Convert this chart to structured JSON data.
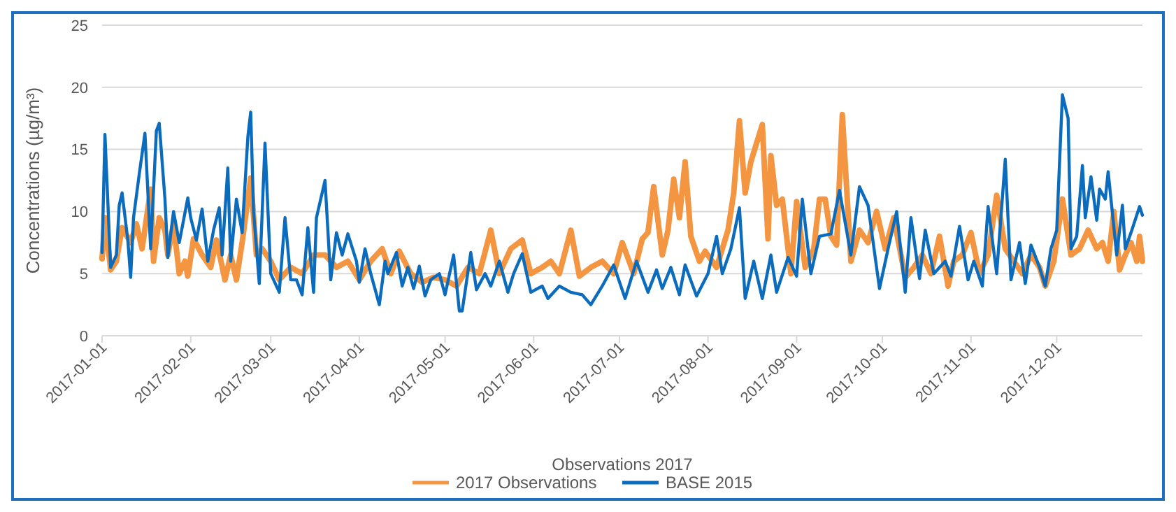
{
  "chart_data": {
    "type": "line",
    "xlabel": "Observations 2017",
    "ylabel": "Concentrations (µg/m³)",
    "xlim": [
      "2017-01-01",
      "2017-12-31"
    ],
    "xticks": [
      "2017-01-01",
      "2017-02-01",
      "2017-03-01",
      "2017-04-01",
      "2017-05-01",
      "2017-06-01",
      "2017-07-01",
      "2017-08-01",
      "2017-09-01",
      "2017-10-01",
      "2017-11-01",
      "2017-12-01"
    ],
    "ylim": [
      0,
      25
    ],
    "yticks": [
      0,
      5,
      10,
      15,
      20,
      25
    ],
    "grid": "y",
    "legend": "bottom",
    "marker": "none",
    "line_style": "solid",
    "series": [
      {
        "name": "2017 Observations",
        "color": "#f39541",
        "x": [
          "2017-01-01",
          "2017-01-02",
          "2017-01-04",
          "2017-01-06",
          "2017-01-08",
          "2017-01-11",
          "2017-01-13",
          "2017-01-15",
          "2017-01-18",
          "2017-01-19",
          "2017-01-21",
          "2017-01-23",
          "2017-01-24",
          "2017-01-26",
          "2017-01-28",
          "2017-01-30",
          "2017-01-31",
          "2017-02-02",
          "2017-02-05",
          "2017-02-08",
          "2017-02-10",
          "2017-02-13",
          "2017-02-15",
          "2017-02-17",
          "2017-02-19",
          "2017-02-22",
          "2017-02-24",
          "2017-02-26",
          "2017-03-01",
          "2017-03-04",
          "2017-03-08",
          "2017-03-12",
          "2017-03-16",
          "2017-03-20",
          "2017-03-24",
          "2017-03-28",
          "2017-04-01",
          "2017-04-05",
          "2017-04-09",
          "2017-04-12",
          "2017-04-15",
          "2017-04-19",
          "2017-04-23",
          "2017-04-27",
          "2017-05-01",
          "2017-05-05",
          "2017-05-09",
          "2017-05-13",
          "2017-05-17",
          "2017-05-20",
          "2017-05-24",
          "2017-05-28",
          "2017-05-31",
          "2017-06-04",
          "2017-06-07",
          "2017-06-10",
          "2017-06-14",
          "2017-06-17",
          "2017-06-21",
          "2017-06-25",
          "2017-06-29",
          "2017-07-02",
          "2017-07-06",
          "2017-07-09",
          "2017-07-11",
          "2017-07-13",
          "2017-07-16",
          "2017-07-18",
          "2017-07-20",
          "2017-07-22",
          "2017-07-24",
          "2017-07-26",
          "2017-07-29",
          "2017-07-31",
          "2017-08-04",
          "2017-08-08",
          "2017-08-10",
          "2017-08-12",
          "2017-08-14",
          "2017-08-16",
          "2017-08-18",
          "2017-08-20",
          "2017-08-22",
          "2017-08-23",
          "2017-08-25",
          "2017-08-27",
          "2017-08-30",
          "2017-09-01",
          "2017-09-04",
          "2017-09-07",
          "2017-09-09",
          "2017-09-11",
          "2017-09-13",
          "2017-09-15",
          "2017-09-17",
          "2017-09-20",
          "2017-09-23",
          "2017-09-26",
          "2017-09-29",
          "2017-10-02",
          "2017-10-05",
          "2017-10-09",
          "2017-10-12",
          "2017-10-15",
          "2017-10-18",
          "2017-10-21",
          "2017-10-24",
          "2017-10-26",
          "2017-10-29",
          "2017-11-01",
          "2017-11-04",
          "2017-11-07",
          "2017-11-10",
          "2017-11-13",
          "2017-11-16",
          "2017-11-19",
          "2017-11-22",
          "2017-11-25",
          "2017-11-27",
          "2017-11-30",
          "2017-12-03",
          "2017-12-06",
          "2017-12-09",
          "2017-12-12",
          "2017-12-15",
          "2017-12-17",
          "2017-12-19",
          "2017-12-21",
          "2017-12-23",
          "2017-12-25",
          "2017-12-27",
          "2017-12-29",
          "2017-12-30",
          "2017-12-31"
        ],
        "values": [
          6.2,
          9.5,
          5.3,
          6.0,
          8.7,
          7.5,
          9.0,
          7.0,
          11.8,
          6.0,
          9.5,
          8.5,
          6.5,
          9.0,
          5.0,
          6.0,
          4.8,
          7.8,
          6.5,
          5.5,
          7.7,
          4.5,
          6.5,
          4.5,
          7.5,
          12.7,
          6.5,
          7.0,
          6.0,
          4.5,
          5.5,
          5.0,
          6.5,
          6.5,
          5.5,
          6.0,
          4.5,
          6.0,
          7.0,
          5.0,
          6.8,
          5.0,
          4.3,
          4.7,
          4.5,
          4.0,
          5.5,
          5.0,
          8.5,
          5.0,
          7.0,
          7.7,
          5.0,
          5.5,
          6.0,
          5.0,
          8.5,
          4.8,
          5.5,
          6.0,
          5.0,
          7.5,
          5.0,
          7.8,
          8.3,
          12.0,
          6.5,
          8.5,
          12.6,
          9.5,
          14.0,
          8.0,
          6.0,
          6.8,
          5.5,
          8.5,
          11.5,
          17.3,
          11.5,
          14.0,
          15.5,
          17.0,
          7.8,
          14.5,
          10.5,
          11.0,
          5.0,
          10.8,
          5.5,
          7.0,
          11.0,
          11.0,
          8.0,
          7.3,
          17.8,
          6.0,
          8.5,
          7.5,
          10.0,
          7.0,
          9.5,
          4.7,
          5.5,
          6.5,
          5.0,
          8.0,
          4.0,
          6.0,
          6.5,
          8.3,
          5.0,
          6.5,
          11.3,
          7.0,
          6.0,
          5.0,
          6.5,
          5.5,
          4.0,
          6.0,
          11.0,
          6.5,
          7.0,
          8.5,
          7.0,
          7.5,
          6.0,
          10.0,
          5.3,
          6.5,
          7.5,
          6.0,
          8.0,
          6.0
        ]
      },
      {
        "name": "BASE 2015",
        "color": "#0b6cbd",
        "x": [
          "2017-01-01",
          "2017-01-02",
          "2017-01-04",
          "2017-01-06",
          "2017-01-07",
          "2017-01-08",
          "2017-01-10",
          "2017-01-11",
          "2017-01-12",
          "2017-01-14",
          "2017-01-16",
          "2017-01-18",
          "2017-01-20",
          "2017-01-21",
          "2017-01-23",
          "2017-01-24",
          "2017-01-26",
          "2017-01-28",
          "2017-01-31",
          "2017-02-01",
          "2017-02-03",
          "2017-02-05",
          "2017-02-07",
          "2017-02-09",
          "2017-02-11",
          "2017-02-12",
          "2017-02-14",
          "2017-02-15",
          "2017-02-17",
          "2017-02-19",
          "2017-02-21",
          "2017-02-22",
          "2017-02-23",
          "2017-02-25",
          "2017-02-27",
          "2017-03-01",
          "2017-03-04",
          "2017-03-06",
          "2017-03-08",
          "2017-03-10",
          "2017-03-12",
          "2017-03-14",
          "2017-03-16",
          "2017-03-17",
          "2017-03-20",
          "2017-03-22",
          "2017-03-24",
          "2017-03-26",
          "2017-03-28",
          "2017-03-31",
          "2017-04-01",
          "2017-04-03",
          "2017-04-05",
          "2017-04-08",
          "2017-04-10",
          "2017-04-11",
          "2017-04-14",
          "2017-04-16",
          "2017-04-18",
          "2017-04-20",
          "2017-04-22",
          "2017-04-24",
          "2017-04-26",
          "2017-04-29",
          "2017-05-01",
          "2017-05-04",
          "2017-05-06",
          "2017-05-07",
          "2017-05-10",
          "2017-05-12",
          "2017-05-15",
          "2017-05-17",
          "2017-05-20",
          "2017-05-23",
          "2017-05-25",
          "2017-05-28",
          "2017-05-31",
          "2017-06-04",
          "2017-06-06",
          "2017-06-10",
          "2017-06-14",
          "2017-06-18",
          "2017-06-21",
          "2017-06-25",
          "2017-06-29",
          "2017-07-03",
          "2017-07-07",
          "2017-07-11",
          "2017-07-14",
          "2017-07-16",
          "2017-07-19",
          "2017-07-22",
          "2017-07-24",
          "2017-07-28",
          "2017-08-01",
          "2017-08-04",
          "2017-08-06",
          "2017-08-09",
          "2017-08-12",
          "2017-08-14",
          "2017-08-17",
          "2017-08-20",
          "2017-08-23",
          "2017-08-25",
          "2017-08-29",
          "2017-09-01",
          "2017-09-03",
          "2017-09-06",
          "2017-09-09",
          "2017-09-13",
          "2017-09-16",
          "2017-09-20",
          "2017-09-23",
          "2017-09-26",
          "2017-09-30",
          "2017-10-03",
          "2017-10-06",
          "2017-10-09",
          "2017-10-11",
          "2017-10-14",
          "2017-10-16",
          "2017-10-19",
          "2017-10-23",
          "2017-10-25",
          "2017-10-28",
          "2017-10-31",
          "2017-11-02",
          "2017-11-05",
          "2017-11-07",
          "2017-11-10",
          "2017-11-13",
          "2017-11-15",
          "2017-11-18",
          "2017-11-20",
          "2017-11-22",
          "2017-11-25",
          "2017-11-27",
          "2017-11-29",
          "2017-12-01",
          "2017-12-03",
          "2017-12-05",
          "2017-12-06",
          "2017-12-08",
          "2017-12-10",
          "2017-12-11",
          "2017-12-13",
          "2017-12-15",
          "2017-12-16",
          "2017-12-18",
          "2017-12-19",
          "2017-12-22",
          "2017-12-24",
          "2017-12-25",
          "2017-12-27",
          "2017-12-30",
          "2017-12-31"
        ],
        "values": [
          6.7,
          16.2,
          5.5,
          6.5,
          10.5,
          11.5,
          7.7,
          4.7,
          9.5,
          13.0,
          16.3,
          7.0,
          16.5,
          17.1,
          11.0,
          6.3,
          10.0,
          7.5,
          11.1,
          9.5,
          7.7,
          10.2,
          6.0,
          8.5,
          10.3,
          6.5,
          13.5,
          6.0,
          11.0,
          8.3,
          16.0,
          18.0,
          10.0,
          4.2,
          15.5,
          5.0,
          3.5,
          9.5,
          4.5,
          4.5,
          3.3,
          8.7,
          3.5,
          9.5,
          12.5,
          4.5,
          8.3,
          6.5,
          8.2,
          6.0,
          4.3,
          7.0,
          5.0,
          2.5,
          6.0,
          5.0,
          6.7,
          4.0,
          5.5,
          3.8,
          5.6,
          3.2,
          4.5,
          5.0,
          3.3,
          6.5,
          2.0,
          2.0,
          6.7,
          3.7,
          5.0,
          4.0,
          6.0,
          3.5,
          5.0,
          6.6,
          3.5,
          4.0,
          3.0,
          4.0,
          3.5,
          3.3,
          2.5,
          4.0,
          5.7,
          3.0,
          6.0,
          3.5,
          5.3,
          3.8,
          5.5,
          3.3,
          5.7,
          3.2,
          5.0,
          8.0,
          5.0,
          7.0,
          10.3,
          3.0,
          6.0,
          3.0,
          6.5,
          3.5,
          6.3,
          4.8,
          11.0,
          5.0,
          8.0,
          8.2,
          11.7,
          6.5,
          12.0,
          10.5,
          3.8,
          7.0,
          10.0,
          3.5,
          9.5,
          4.6,
          8.5,
          5.0,
          6.0,
          4.8,
          8.8,
          4.5,
          6.0,
          4.0,
          10.4,
          5.0,
          14.2,
          4.5,
          7.5,
          4.2,
          7.3,
          5.5,
          4.0,
          7.0,
          8.5,
          19.4,
          17.5,
          7.0,
          8.0,
          13.7,
          9.5,
          12.8,
          9.3,
          11.8,
          11.0,
          13.2,
          6.5,
          10.5,
          7.0,
          8.3,
          10.4,
          9.7
        ]
      }
    ]
  }
}
